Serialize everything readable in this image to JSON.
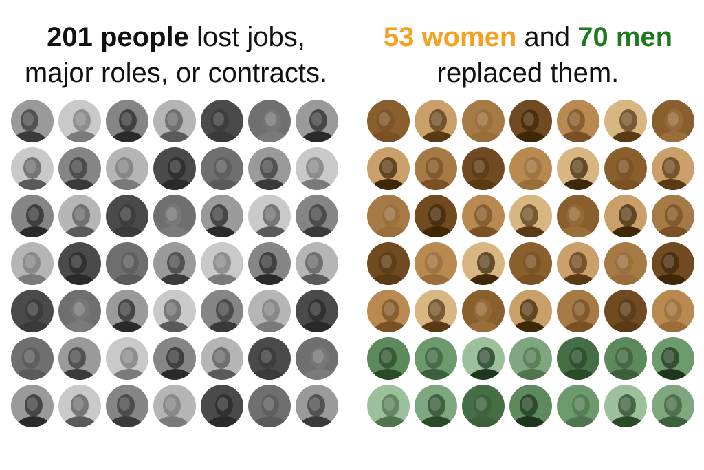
{
  "left": {
    "headline_bold": "201 people",
    "headline_rest_line1": " lost jobs,",
    "headline_line2": "major roles, or contracts.",
    "rows": 7,
    "cols": 7,
    "portrait_icon": "person-portrait-icon",
    "colors": {
      "bg": [
        "#c9c9c9",
        "#9a9a9a",
        "#6f6f6f",
        "#4a4a4a",
        "#b5b5b5",
        "#858585"
      ],
      "figure": [
        "#3a3a3a",
        "#5a5a5a",
        "#2a2a2a",
        "#7a7a7a"
      ]
    }
  },
  "right": {
    "women_label": "53 women",
    "and_label": " and ",
    "men_label": "70 men",
    "headline_line2": "replaced them.",
    "women_rows": 5,
    "men_rows": 2,
    "cols": 7,
    "portrait_icon": "person-portrait-icon",
    "colors": {
      "women_accent": "#f5a01f",
      "men_accent": "#1e7a1f",
      "women_bg": [
        "#a57a45",
        "#caa06a",
        "#8a5f2e",
        "#d8b682",
        "#b88a52",
        "#704a20"
      ],
      "women_figure": [
        "#5a3a15",
        "#7a5024",
        "#3f2808",
        "#9a6e3a"
      ],
      "men_bg": [
        "#7fa77f",
        "#5c8a5c",
        "#9cc09c",
        "#466e46",
        "#6d9a6d"
      ],
      "men_figure": [
        "#2a4a2a",
        "#3c5f3c",
        "#1d361d",
        "#4f744f"
      ]
    }
  }
}
